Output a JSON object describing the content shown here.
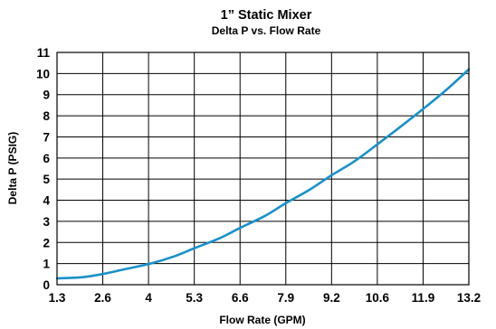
{
  "chart_data": {
    "type": "line",
    "title": "1” Static Mixer",
    "subtitle": "Delta P vs. Flow Rate",
    "xlabel": "Flow Rate (GPM)",
    "ylabel": "Delta P (PSIG)",
    "x_ticks": [
      "1.3",
      "2.6",
      "4",
      "5.3",
      "6.6",
      "7.9",
      "9.2",
      "10.6",
      "11.9",
      "13.2"
    ],
    "y_ticks": [
      "0",
      "1",
      "2",
      "3",
      "4",
      "5",
      "6",
      "7",
      "8",
      "9",
      "10",
      "11"
    ],
    "xlim": [
      1.3,
      13.2
    ],
    "ylim": [
      0,
      11
    ],
    "grid": true,
    "line_color": "#1a90c8",
    "series": [
      {
        "x": [
          1.3,
          2.0,
          2.6,
          3.3,
          4.0,
          4.7,
          5.3,
          6.0,
          6.6,
          7.3,
          7.9,
          8.6,
          9.2,
          9.9,
          10.6,
          11.2,
          11.9,
          12.6,
          13.2
        ],
        "values": [
          0.3,
          0.35,
          0.5,
          0.75,
          1.0,
          1.35,
          1.75,
          2.2,
          2.7,
          3.25,
          3.85,
          4.5,
          5.15,
          5.85,
          6.7,
          7.45,
          8.35,
          9.3,
          10.2
        ]
      }
    ]
  }
}
